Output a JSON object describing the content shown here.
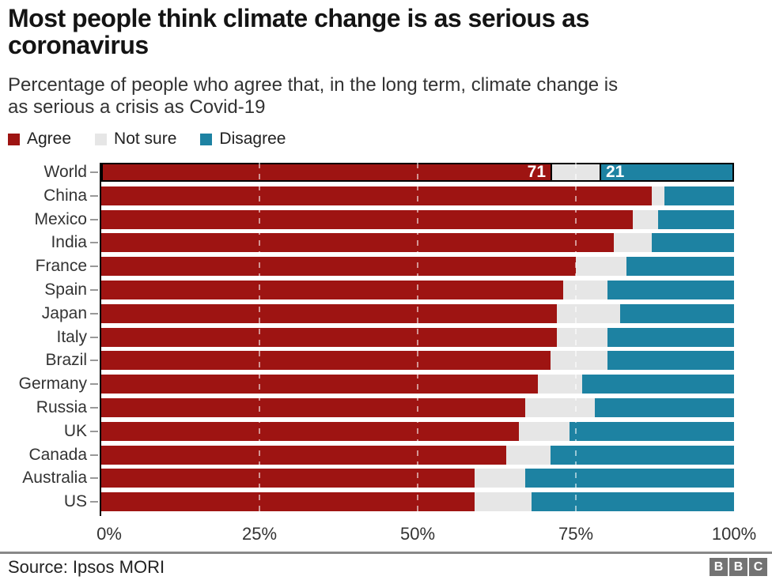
{
  "header": {
    "title_lines": [
      "Most people think climate change is as serious as",
      "coronavirus"
    ],
    "subtitle_lines": [
      "Percentage of people who agree that, in the long term, climate change is",
      "as serious a crisis as Covid-19"
    ]
  },
  "legend": [
    {
      "label": "Agree",
      "color": "#9e1412"
    },
    {
      "label": "Not sure",
      "color": "#e6e6e6"
    },
    {
      "label": "Disagree",
      "color": "#1d82a2"
    }
  ],
  "chart_data": {
    "type": "bar",
    "orientation": "horizontal",
    "stacked": true,
    "categories": [
      "World",
      "China",
      "Mexico",
      "India",
      "France",
      "Spain",
      "Japan",
      "Italy",
      "Brazil",
      "Germany",
      "Russia",
      "UK",
      "Canada",
      "Australia",
      "US"
    ],
    "series": [
      {
        "name": "Agree",
        "color": "#9e1412",
        "values": [
          71,
          87,
          84,
          81,
          75,
          73,
          72,
          72,
          71,
          69,
          67,
          66,
          64,
          59,
          59
        ]
      },
      {
        "name": "Not sure",
        "color": "#e6e6e6",
        "values": [
          8,
          2,
          4,
          6,
          8,
          7,
          10,
          8,
          9,
          7,
          11,
          8,
          7,
          8,
          9
        ]
      },
      {
        "name": "Disagree",
        "color": "#1d82a2",
        "values": [
          21,
          11,
          12,
          13,
          17,
          20,
          18,
          20,
          20,
          24,
          22,
          26,
          29,
          33,
          32
        ]
      }
    ],
    "highlighted_category": "World",
    "bar_labels": {
      "World": {
        "Agree": "71",
        "Disagree": "21"
      }
    },
    "x_ticks": [
      "0%",
      "25%",
      "50%",
      "75%",
      "100%"
    ],
    "xlim": [
      0,
      100
    ],
    "gridlines_percent": [
      25,
      50,
      75
    ],
    "grid": true,
    "legend_position": "top"
  },
  "footer": {
    "source": "Source: Ipsos MORI",
    "logo_letters": [
      "B",
      "B",
      "C"
    ]
  }
}
